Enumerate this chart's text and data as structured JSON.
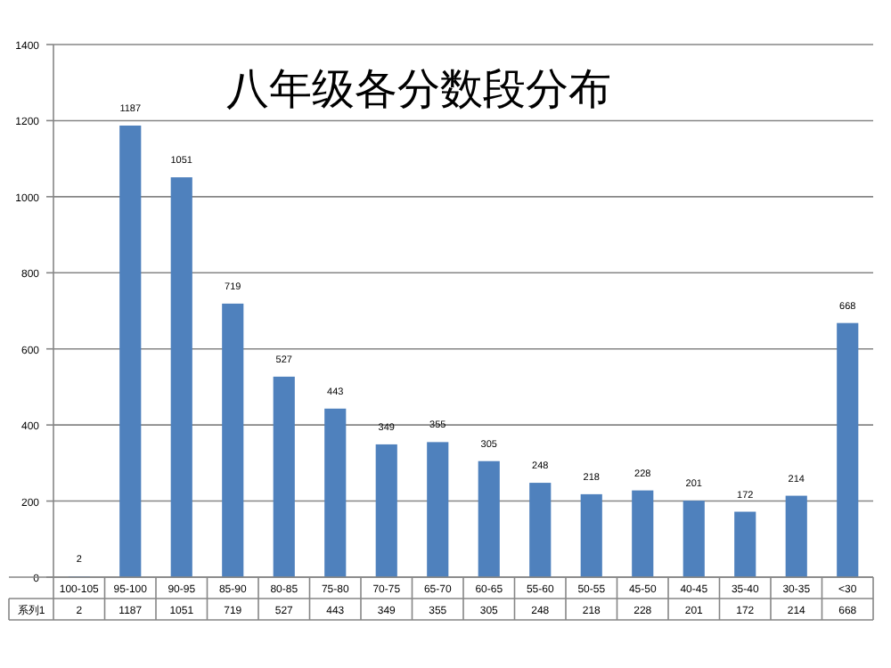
{
  "chart_data": {
    "type": "bar",
    "title": "八年级各分数段分布",
    "categories": [
      "100-105",
      "95-100",
      "90-95",
      "85-90",
      "80-85",
      "75-80",
      "70-75",
      "65-70",
      "60-65",
      "55-60",
      "50-55",
      "45-50",
      "40-45",
      "35-40",
      "30-35",
      "<30"
    ],
    "series": [
      {
        "name": "系列1",
        "color": "#4f81bd",
        "values": [
          2,
          1187,
          1051,
          719,
          527,
          443,
          349,
          355,
          305,
          248,
          218,
          228,
          201,
          172,
          214,
          668
        ]
      }
    ],
    "annotations": [
      "2",
      "1187",
      "1051",
      "719",
      "527",
      "443",
      "349",
      "355",
      "305",
      "248",
      "218",
      "228",
      "201",
      "172",
      "214",
      "668"
    ],
    "ylim": [
      0,
      1400
    ],
    "yticks": [
      0,
      200,
      400,
      600,
      800,
      1000,
      1200,
      1400
    ],
    "grid": "y",
    "data_labels": true
  }
}
